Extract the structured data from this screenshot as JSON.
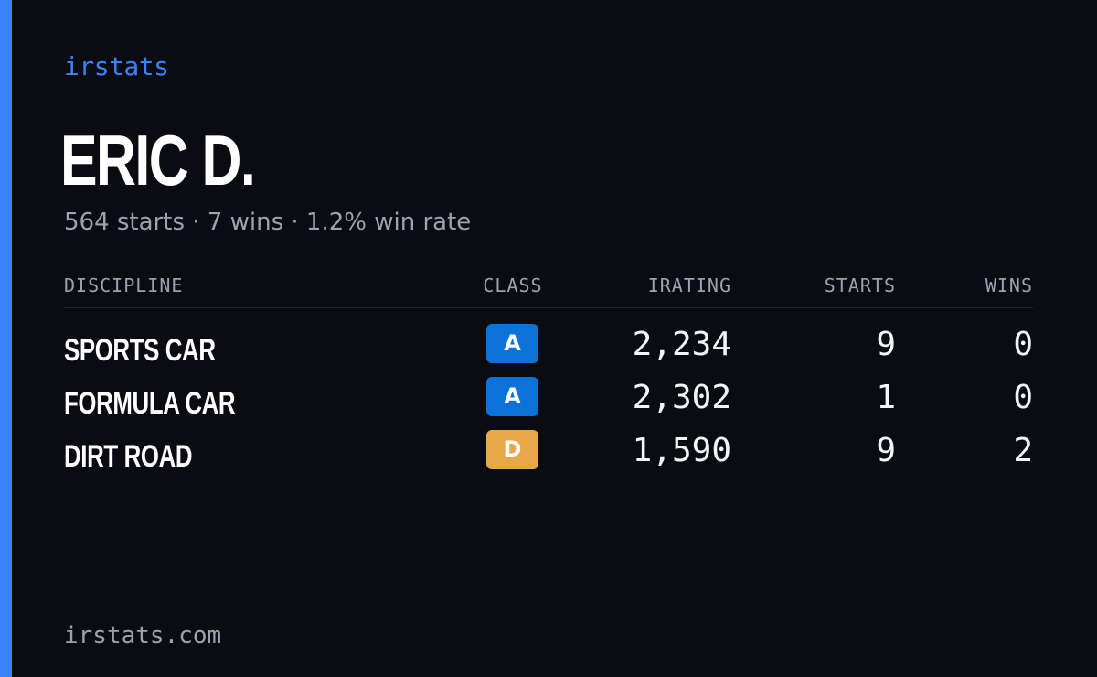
{
  "brand": "irstats",
  "driver": {
    "name": "ERIC D.",
    "starts_text": "564 starts",
    "wins_text": "7 wins",
    "win_rate_text": "1.2% win rate",
    "separator": "·"
  },
  "table": {
    "headers": {
      "discipline": "DISCIPLINE",
      "class": "CLASS",
      "irating": "IRATING",
      "starts": "STARTS",
      "wins": "WINS"
    },
    "rows": [
      {
        "discipline": "SPORTS CAR",
        "class": "A",
        "class_color": "#0b72d9",
        "irating": "2,234",
        "starts": "9",
        "wins": "0"
      },
      {
        "discipline": "FORMULA CAR",
        "class": "A",
        "class_color": "#0b72d9",
        "irating": "2,302",
        "starts": "1",
        "wins": "0"
      },
      {
        "discipline": "DIRT ROAD",
        "class": "D",
        "class_color": "#e8a84a",
        "irating": "1,590",
        "starts": "9",
        "wins": "2"
      }
    ]
  },
  "footer": "irstats.com",
  "colors": {
    "accent": "#3b82f6",
    "background": "#0a0c12",
    "muted": "#9aa3b2",
    "class_a": "#0b72d9",
    "class_d": "#e8a84a"
  }
}
